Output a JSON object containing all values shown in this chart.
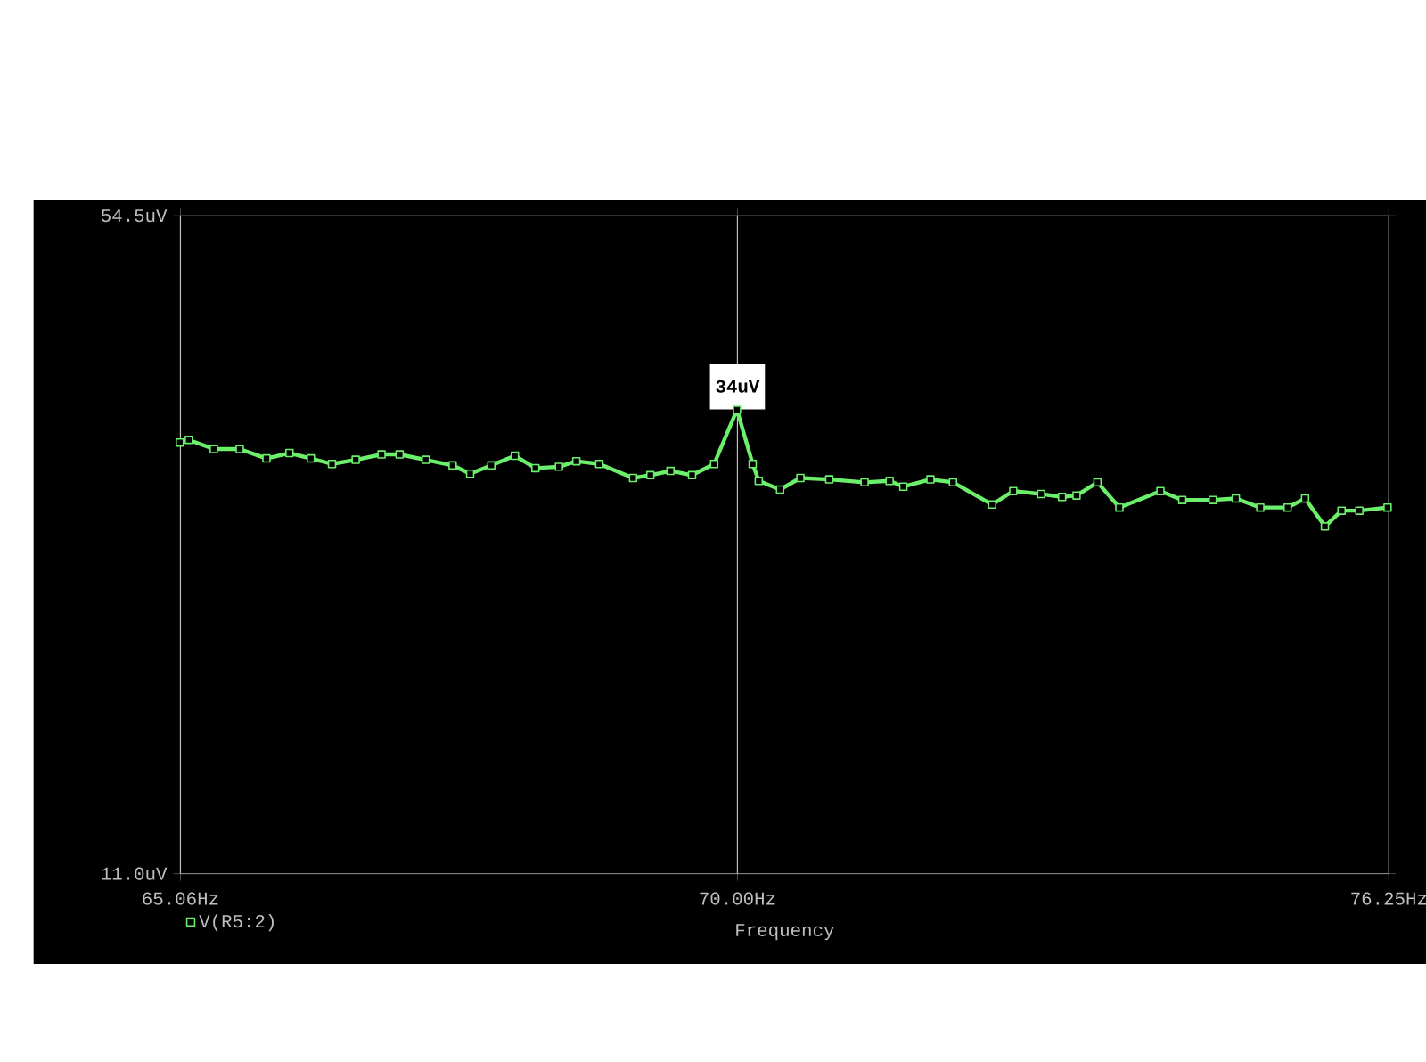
{
  "chart_data": {
    "type": "line",
    "xlabel": "Frequency",
    "x": [
      65.06,
      65.136,
      65.348,
      65.576,
      65.805,
      66.004,
      66.188,
      66.373,
      66.574,
      66.806,
      66.963,
      67.195,
      67.431,
      67.587,
      67.775,
      67.981,
      68.17,
      68.377,
      68.536,
      68.743,
      69.05,
      69.21,
      69.388,
      69.583,
      69.79,
      70.0,
      70.147,
      70.196,
      70.392,
      70.589,
      70.852,
      71.182,
      71.414,
      71.547,
      71.797,
      72.014,
      72.383,
      72.585,
      72.855,
      73.059,
      73.195,
      73.399,
      73.604,
      73.998,
      74.222,
      74.516,
      74.742,
      74.986,
      75.247,
      75.422,
      75.615,
      75.791,
      75.967,
      76.25
    ],
    "series": [
      {
        "name": "V(R5:2)",
        "color": "#6cf06c",
        "values": [
          31.4,
          31.6,
          30.9,
          30.9,
          30.2,
          30.6,
          30.2,
          29.8,
          30.1,
          30.5,
          30.5,
          30.1,
          29.7,
          29.1,
          29.7,
          30.4,
          29.5,
          29.6,
          30.0,
          29.8,
          28.8,
          29.0,
          29.3,
          29.0,
          29.8,
          34,
          29.8,
          28.6,
          28.0,
          28.8,
          28.7,
          28.5,
          28.6,
          28.2,
          28.7,
          28.5,
          27.0,
          27.9,
          27.7,
          27.5,
          27.6,
          28.5,
          26.8,
          27.9,
          27.3,
          27.3,
          27.4,
          26.8,
          26.8,
          27.4,
          25.6,
          26.6,
          26.6,
          26.8
        ]
      }
    ],
    "xlim": [
      65.06,
      76.25
    ],
    "ylim": [
      11.0,
      54.5
    ],
    "xticks": [
      {
        "value": 65.06,
        "label": "65.06Hz"
      },
      {
        "value": 70.0,
        "label": "70.00Hz"
      },
      {
        "value": 76.25,
        "label": "76.25Hz"
      }
    ],
    "yticks": [
      {
        "value": 11.0,
        "label": "11.0uV"
      },
      {
        "value": 54.5,
        "label": "54.5uV"
      }
    ],
    "log": "xy",
    "grid": "x",
    "legend": "bottom left",
    "marker": "square",
    "line_style": "solid",
    "annotations": [
      {
        "text": "34uV",
        "x": 70.0,
        "y": 34
      }
    ]
  }
}
